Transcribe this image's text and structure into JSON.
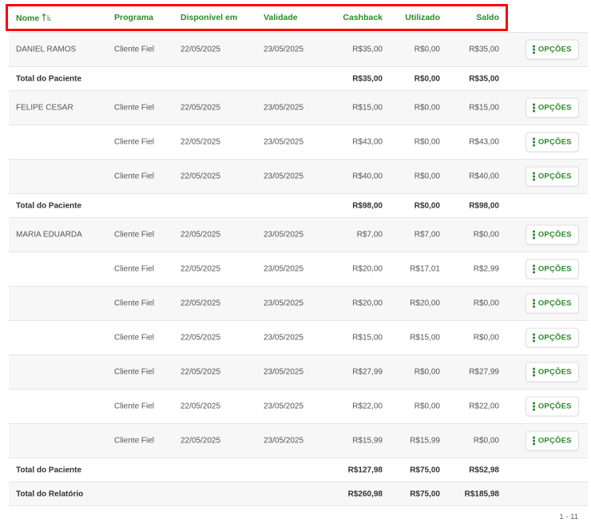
{
  "columns": {
    "name": "Nome",
    "program": "Programa",
    "available": "Disponível em",
    "validity": "Validade",
    "cashback": "Cashback",
    "used": "Utilizado",
    "balance": "Saldo"
  },
  "option_label": "OPÇÕES",
  "rows": [
    {
      "type": "entry",
      "name": "DANIEL RAMOS",
      "program": "Cliente Fiel",
      "available": "22/05/2025",
      "validity": "23/05/2025",
      "cashback": "R$35,00",
      "used": "R$0,00",
      "balance": "R$35,00"
    },
    {
      "type": "total",
      "label": "Total do Paciente",
      "cashback": "R$35,00",
      "used": "R$0,00",
      "balance": "R$35,00"
    },
    {
      "type": "entry",
      "name": "FELIPE CESAR",
      "program": "Cliente Fiel",
      "available": "22/05/2025",
      "validity": "23/05/2025",
      "cashback": "R$15,00",
      "used": "R$0,00",
      "balance": "R$15,00"
    },
    {
      "type": "entry",
      "name": "",
      "program": "Cliente Fiel",
      "available": "22/05/2025",
      "validity": "23/05/2025",
      "cashback": "R$43,00",
      "used": "R$0,00",
      "balance": "R$43,00"
    },
    {
      "type": "entry",
      "name": "",
      "program": "Cliente Fiel",
      "available": "22/05/2025",
      "validity": "23/05/2025",
      "cashback": "R$40,00",
      "used": "R$0,00",
      "balance": "R$40,00"
    },
    {
      "type": "total",
      "label": "Total do Paciente",
      "cashback": "R$98,00",
      "used": "R$0,00",
      "balance": "R$98,00"
    },
    {
      "type": "entry",
      "name": "MARIA EDUARDA",
      "program": "Cliente Fiel",
      "available": "22/05/2025",
      "validity": "23/05/2025",
      "cashback": "R$7,00",
      "used": "R$7,00",
      "balance": "R$0,00"
    },
    {
      "type": "entry",
      "name": "",
      "program": "Cliente Fiel",
      "available": "22/05/2025",
      "validity": "23/05/2025",
      "cashback": "R$20,00",
      "used": "R$17,01",
      "balance": "R$2,99"
    },
    {
      "type": "entry",
      "name": "",
      "program": "Cliente Fiel",
      "available": "22/05/2025",
      "validity": "23/05/2025",
      "cashback": "R$20,00",
      "used": "R$20,00",
      "balance": "R$0,00"
    },
    {
      "type": "entry",
      "name": "",
      "program": "Cliente Fiel",
      "available": "22/05/2025",
      "validity": "23/05/2025",
      "cashback": "R$15,00",
      "used": "R$15,00",
      "balance": "R$0,00"
    },
    {
      "type": "entry",
      "name": "",
      "program": "Cliente Fiel",
      "available": "22/05/2025",
      "validity": "23/05/2025",
      "cashback": "R$27,99",
      "used": "R$0,00",
      "balance": "R$27,99"
    },
    {
      "type": "entry",
      "name": "",
      "program": "Cliente Fiel",
      "available": "22/05/2025",
      "validity": "23/05/2025",
      "cashback": "R$22,00",
      "used": "R$0,00",
      "balance": "R$22,00"
    },
    {
      "type": "entry",
      "name": "",
      "program": "Cliente Fiel",
      "available": "22/05/2025",
      "validity": "23/05/2025",
      "cashback": "R$15,99",
      "used": "R$15,99",
      "balance": "R$0,00"
    },
    {
      "type": "total",
      "label": "Total do Paciente",
      "cashback": "R$127,98",
      "used": "R$75,00",
      "balance": "R$52,98"
    },
    {
      "type": "grand",
      "label": "Total do Relatório",
      "cashback": "R$260,98",
      "used": "R$75,00",
      "balance": "R$185,98"
    }
  ],
  "pagination": "1 - 11",
  "colors": {
    "accent": "#2a8a2a",
    "highlight": "#ff0000",
    "shaded_row": "#f7f7f8"
  }
}
